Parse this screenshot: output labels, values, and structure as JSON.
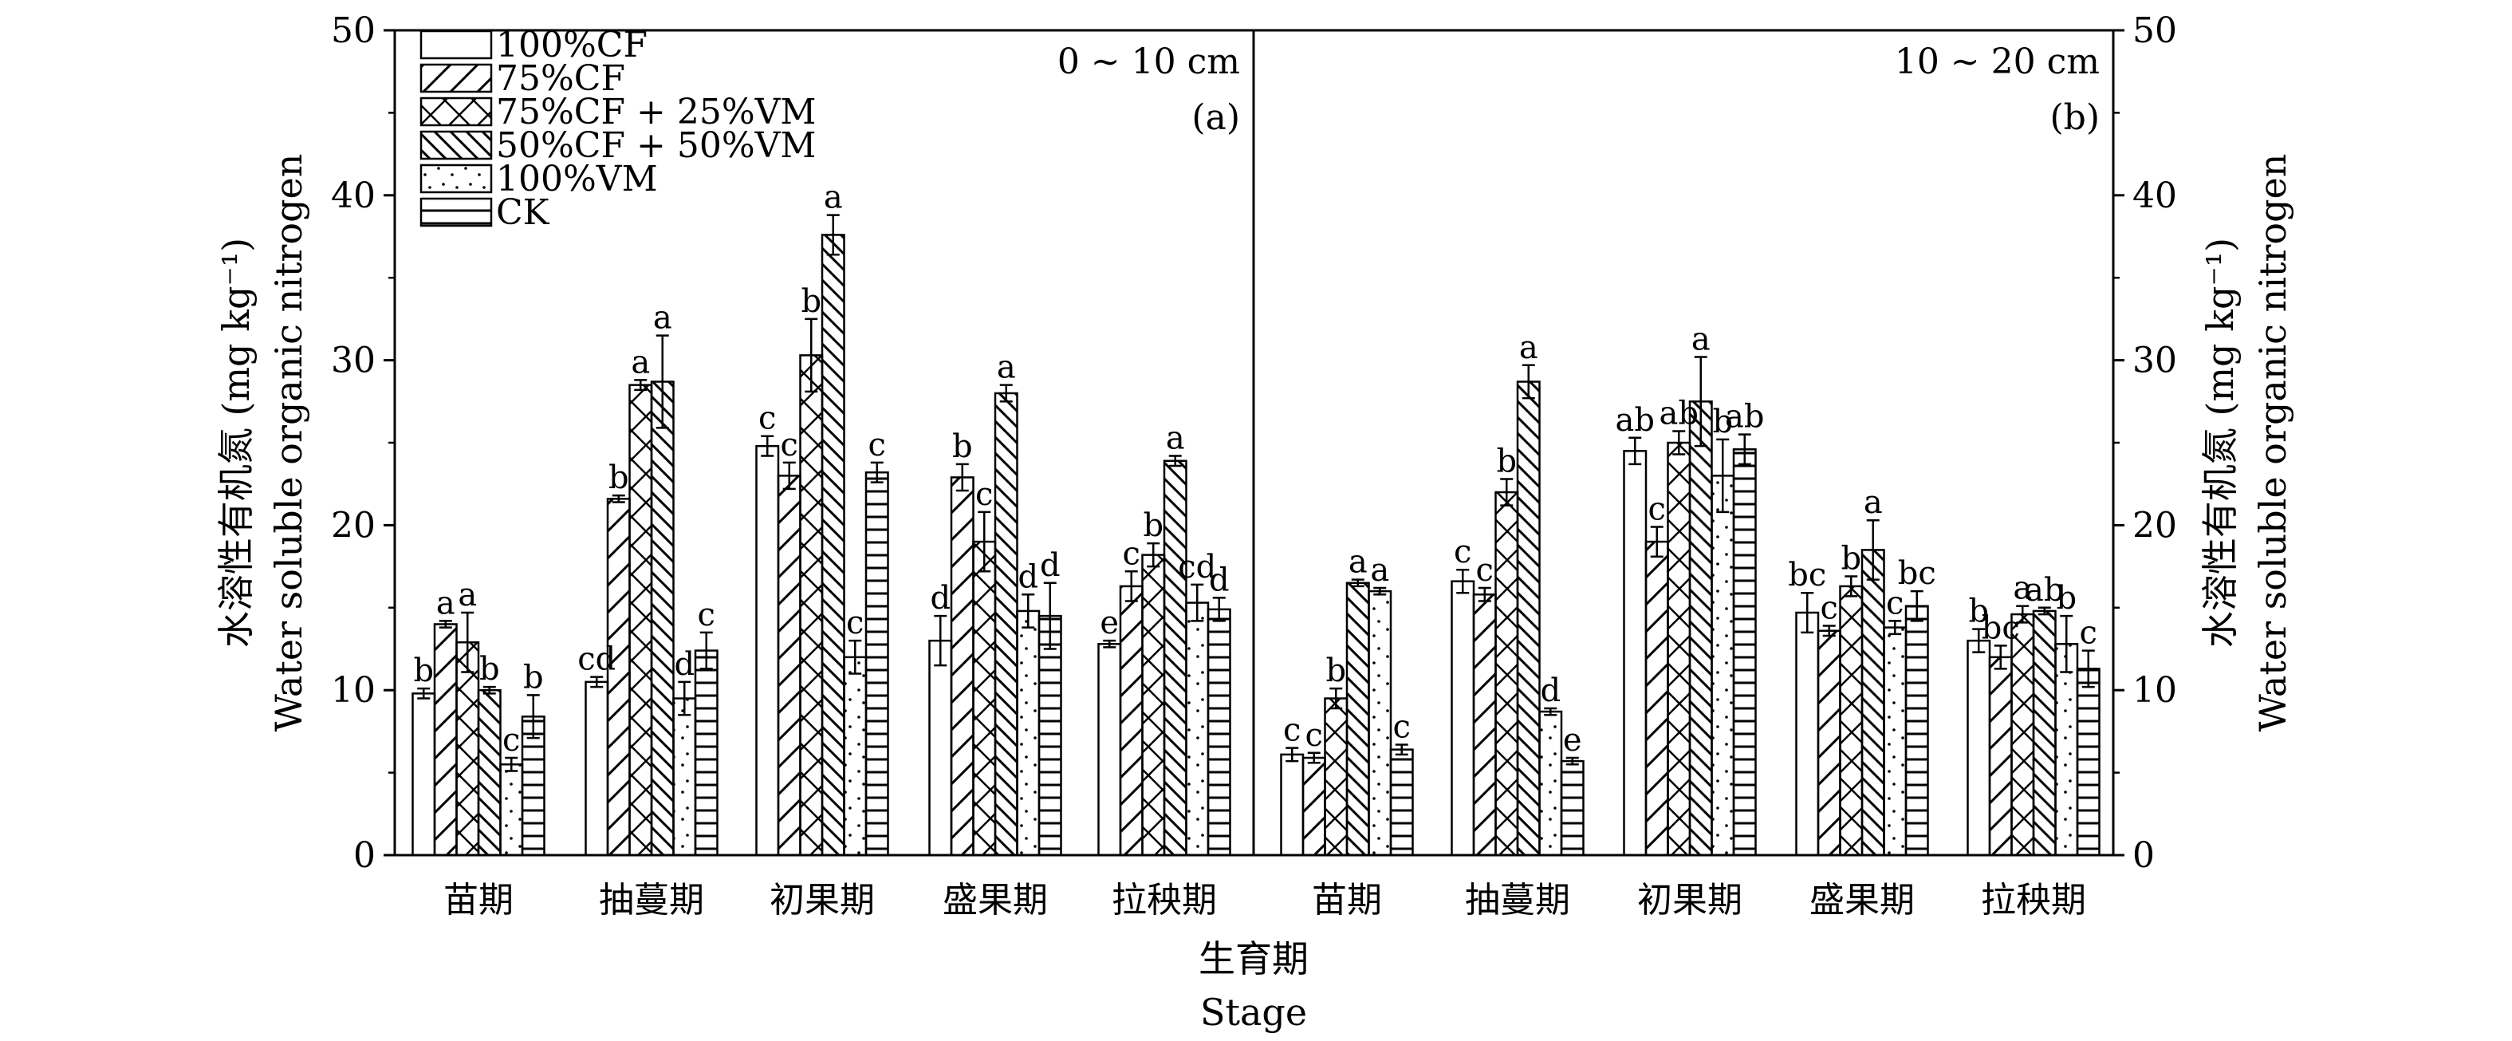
{
  "chart_data": {
    "type": "bar",
    "xlabel_cn": "生育期",
    "xlabel_en": "Stage",
    "ylabel_left_cn": "水溶性有机氮 (mg kg⁻¹)",
    "ylabel_left_en": "Water soluble organic nitrogen",
    "ylabel_right_cn": "水溶性有机氮 (mg kg⁻¹)",
    "ylabel_right_en": "Water soluble organic nitrogen",
    "ylim": [
      0,
      50
    ],
    "yticks": [
      "0",
      "10",
      "20",
      "30",
      "40",
      "50"
    ],
    "legend_position": "top-left",
    "legend": [
      "100%CF",
      "75%CF",
      "75%CF + 25%VM",
      "50%CF + 50%VM",
      "100%VM",
      "CK"
    ],
    "series_patterns": [
      "none",
      "diagonal",
      "crosshatch",
      "backdiagonal",
      "dots",
      "horizontal"
    ],
    "panels": [
      {
        "depth_label": "0 ~ 10 cm",
        "panel_label": "(a)",
        "categories": [
          "苗期",
          "抽蔓期",
          "初果期",
          "盛果期",
          "拉秧期"
        ],
        "series": [
          {
            "name": "100%CF",
            "values": [
              9.8,
              10.5,
              24.8,
              13.0,
              12.8
            ],
            "errors": [
              0.3,
              0.3,
              0.6,
              1.5,
              0.2
            ],
            "labels": [
              "b",
              "cd",
              "c",
              "d",
              "e"
            ]
          },
          {
            "name": "75%CF",
            "values": [
              14.0,
              21.6,
              23.0,
              22.9,
              16.3
            ],
            "errors": [
              0.2,
              0.2,
              0.8,
              0.8,
              0.9
            ],
            "labels": [
              "a",
              "b",
              "c",
              "b",
              "c"
            ]
          },
          {
            "name": "75%CF + 25%VM",
            "values": [
              12.9,
              28.5,
              30.3,
              19.0,
              18.2
            ],
            "errors": [
              1.8,
              0.3,
              2.2,
              1.8,
              0.7
            ],
            "labels": [
              "a",
              "a",
              "b",
              "c",
              "b"
            ]
          },
          {
            "name": "50%CF + 50%VM",
            "values": [
              10.0,
              28.7,
              37.6,
              28.0,
              23.9
            ],
            "errors": [
              0.2,
              2.8,
              1.2,
              0.5,
              0.3
            ],
            "labels": [
              "b",
              "a",
              "a",
              "a",
              "a"
            ]
          },
          {
            "name": "100%VM",
            "values": [
              5.5,
              9.5,
              12.0,
              14.8,
              15.3
            ],
            "errors": [
              0.4,
              1.0,
              1.0,
              1.0,
              1.1
            ],
            "labels": [
              "c",
              "d",
              "c",
              "d",
              "cd"
            ]
          },
          {
            "name": "CK",
            "values": [
              8.4,
              12.4,
              23.2,
              14.5,
              14.9
            ],
            "errors": [
              1.3,
              1.1,
              0.6,
              2.0,
              0.7
            ],
            "labels": [
              "b",
              "c",
              "c",
              "d",
              "d"
            ]
          }
        ]
      },
      {
        "depth_label": "10 ~ 20 cm",
        "panel_label": "(b)",
        "categories": [
          "苗期",
          "抽蔓期",
          "初果期",
          "盛果期",
          "拉秧期"
        ],
        "series": [
          {
            "name": "100%CF",
            "values": [
              6.1,
              16.6,
              24.5,
              14.7,
              13.0
            ],
            "errors": [
              0.4,
              0.7,
              0.8,
              1.2,
              0.7
            ],
            "labels": [
              "c",
              "c",
              "ab",
              "bc",
              "b"
            ]
          },
          {
            "name": "75%CF",
            "values": [
              5.9,
              15.8,
              19.0,
              13.6,
              12.0
            ],
            "errors": [
              0.3,
              0.4,
              0.9,
              0.3,
              0.7
            ],
            "labels": [
              "c",
              "c",
              "c",
              "c",
              "bc"
            ]
          },
          {
            "name": "75%CF + 25%VM",
            "values": [
              9.5,
              22.0,
              25.0,
              16.3,
              14.6
            ],
            "errors": [
              0.6,
              0.8,
              0.7,
              0.6,
              0.5
            ],
            "labels": [
              "b",
              "b",
              "ab",
              "b",
              "a"
            ]
          },
          {
            "name": "50%CF + 50%VM",
            "values": [
              16.5,
              28.7,
              27.5,
              18.5,
              14.8
            ],
            "errors": [
              0.2,
              1.0,
              2.7,
              1.8,
              0.2
            ],
            "labels": [
              "a",
              "a",
              "a",
              "a",
              "ab"
            ]
          },
          {
            "name": "100%VM",
            "values": [
              16.0,
              8.7,
              23.0,
              13.8,
              12.8
            ],
            "errors": [
              0.2,
              0.2,
              2.2,
              0.4,
              1.7
            ],
            "labels": [
              "a",
              "d",
              "b",
              "c",
              "b"
            ]
          },
          {
            "name": "CK",
            "values": [
              6.4,
              5.7,
              24.6,
              15.1,
              11.3
            ],
            "errors": [
              0.3,
              0.2,
              0.9,
              0.9,
              1.1
            ],
            "labels": [
              "c",
              "e",
              "ab",
              "bc",
              "c"
            ]
          }
        ]
      }
    ]
  }
}
